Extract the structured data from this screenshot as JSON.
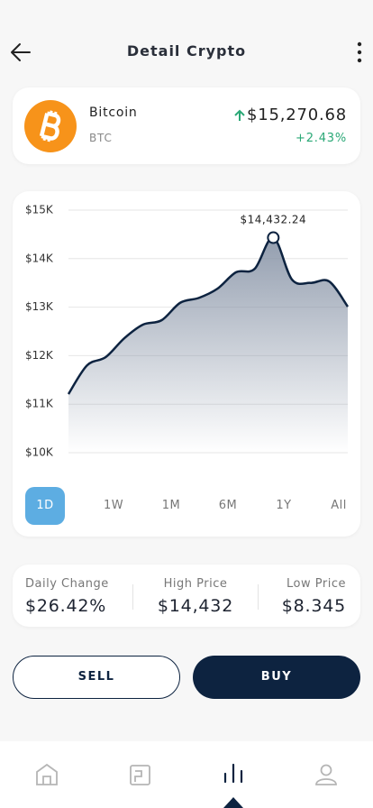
{
  "header": {
    "title": "Detail Crypto"
  },
  "coin": {
    "name": "Bitcoin",
    "ticker": "BTC",
    "price": "$15,270.68",
    "change": "+2.43%"
  },
  "chart_data": {
    "type": "area",
    "line_color": "#0d2340",
    "fill_color": "#8793a6",
    "values": [
      11208,
      11800,
      11970,
      12360,
      12640,
      12730,
      13090,
      13190,
      13380,
      13720,
      13790,
      14432.24,
      13570,
      13500,
      13530,
      13010
    ],
    "annotation": "$14,432.24",
    "ylim": [
      10000,
      15000
    ],
    "yticks": [
      {
        "value": 10000,
        "label": "$10K"
      },
      {
        "value": 11000,
        "label": "$11K"
      },
      {
        "value": 12000,
        "label": "$12K"
      },
      {
        "value": 13000,
        "label": "$13K"
      },
      {
        "value": 14000,
        "label": "$14K"
      },
      {
        "value": 15000,
        "label": "$15K"
      }
    ],
    "grid": true
  },
  "timeframes": [
    "1D",
    "1W",
    "1M",
    "6M",
    "1Y",
    "All"
  ],
  "stats": [
    {
      "label": "Daily Change",
      "value": "$26.42%"
    },
    {
      "label": "High Price",
      "value": "$14,432"
    },
    {
      "label": "Low Price",
      "value": "$8.345"
    }
  ],
  "buttons": {
    "sell": "SELL",
    "buy": "BUY"
  }
}
